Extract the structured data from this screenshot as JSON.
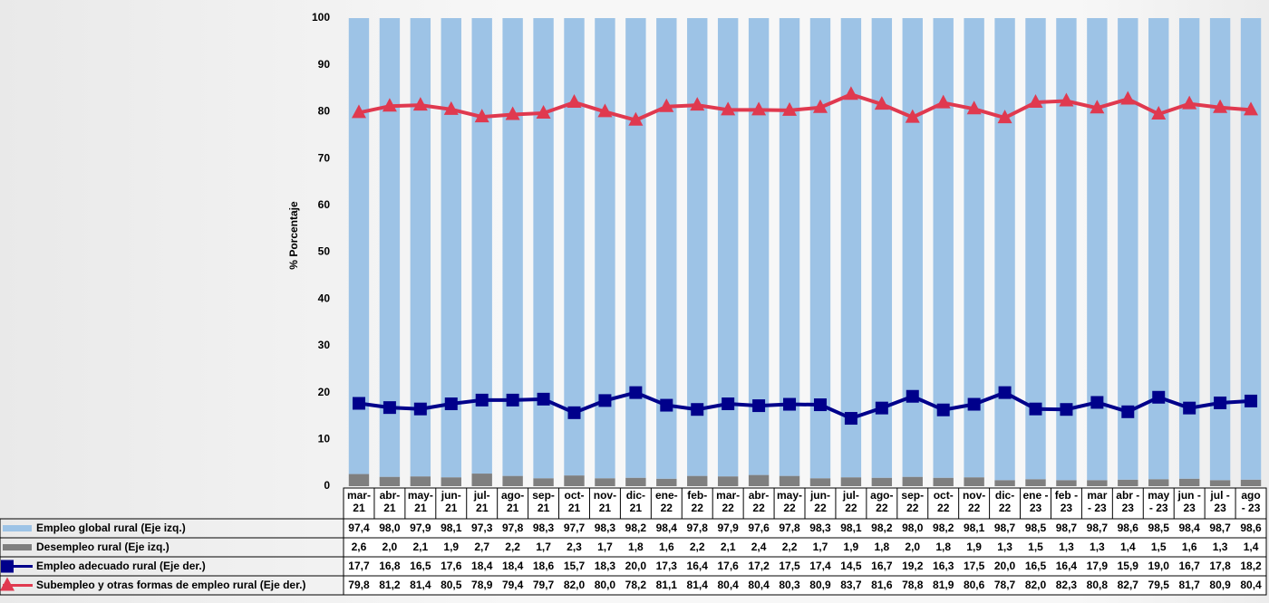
{
  "chart_data": {
    "type": "bar_line",
    "y_label": "% Porcentaje",
    "categories": [
      "mar-\n21",
      "abr-\n21",
      "may-\n21",
      "jun-\n21",
      "jul-\n21",
      "ago-\n21",
      "sep-\n21",
      "oct-\n21",
      "nov-\n21",
      "dic-\n21",
      "ene-\n22",
      "feb-\n22",
      "mar-\n22",
      "abr-\n22",
      "may-\n22",
      "jun-\n22",
      "jul-\n22",
      "ago-\n22",
      "sep-\n22",
      "oct-\n22",
      "nov-\n22",
      "dic-\n22",
      "ene -\n23",
      "feb -\n23",
      "mar\n- 23",
      "abr -\n23",
      "may\n- 23",
      "jun -\n23",
      "jul -\n23",
      "ago\n- 23"
    ],
    "ylim": [
      0,
      100
    ],
    "yticks": [
      0,
      10,
      20,
      30,
      40,
      50,
      60,
      70,
      80,
      90,
      100
    ],
    "series": [
      {
        "name": "Empleo global rural  (Eje izq.)",
        "kind": "bar",
        "color": "#9dc3e6",
        "values": [
          97.4,
          98.0,
          97.9,
          98.1,
          97.3,
          97.8,
          98.3,
          97.7,
          98.3,
          98.2,
          98.4,
          97.8,
          97.9,
          97.6,
          97.8,
          98.3,
          98.1,
          98.2,
          98.0,
          98.2,
          98.1,
          98.7,
          98.5,
          98.7,
          98.7,
          98.6,
          98.5,
          98.4,
          98.7,
          98.6
        ],
        "value_labels": [
          "97,4",
          "98,0",
          "97,9",
          "98,1",
          "97,3",
          "97,8",
          "98,3",
          "97,7",
          "98,3",
          "98,2",
          "98,4",
          "97,8",
          "97,9",
          "97,6",
          "97,8",
          "98,3",
          "98,1",
          "98,2",
          "98,0",
          "98,2",
          "98,1",
          "98,7",
          "98,5",
          "98,7",
          "98,7",
          "98,6",
          "98,5",
          "98,4",
          "98,7",
          "98,6"
        ]
      },
      {
        "name": "Desempleo rural (Eje izq.)",
        "kind": "bar",
        "color": "#7f7f7f",
        "values": [
          2.6,
          2.0,
          2.1,
          1.9,
          2.7,
          2.2,
          1.7,
          2.3,
          1.7,
          1.8,
          1.6,
          2.2,
          2.1,
          2.4,
          2.2,
          1.7,
          1.9,
          1.8,
          2.0,
          1.8,
          1.9,
          1.3,
          1.5,
          1.3,
          1.3,
          1.4,
          1.5,
          1.6,
          1.3,
          1.4
        ],
        "value_labels": [
          "2,6",
          "2,0",
          "2,1",
          "1,9",
          "2,7",
          "2,2",
          "1,7",
          "2,3",
          "1,7",
          "1,8",
          "1,6",
          "2,2",
          "2,1",
          "2,4",
          "2,2",
          "1,7",
          "1,9",
          "1,8",
          "2,0",
          "1,8",
          "1,9",
          "1,3",
          "1,5",
          "1,3",
          "1,3",
          "1,4",
          "1,5",
          "1,6",
          "1,3",
          "1,4"
        ]
      },
      {
        "name": "Empleo adecuado rural (Eje der.)",
        "kind": "line",
        "marker": "square",
        "color": "#00008b",
        "values": [
          17.7,
          16.8,
          16.5,
          17.6,
          18.4,
          18.4,
          18.6,
          15.7,
          18.3,
          20.0,
          17.3,
          16.4,
          17.6,
          17.2,
          17.5,
          17.4,
          14.5,
          16.7,
          19.2,
          16.3,
          17.5,
          20.0,
          16.5,
          16.4,
          17.9,
          15.9,
          19.0,
          16.7,
          17.8,
          18.2
        ],
        "value_labels": [
          "17,7",
          "16,8",
          "16,5",
          "17,6",
          "18,4",
          "18,4",
          "18,6",
          "15,7",
          "18,3",
          "20,0",
          "17,3",
          "16,4",
          "17,6",
          "17,2",
          "17,5",
          "17,4",
          "14,5",
          "16,7",
          "19,2",
          "16,3",
          "17,5",
          "20,0",
          "16,5",
          "16,4",
          "17,9",
          "15,9",
          "19,0",
          "16,7",
          "17,8",
          "18,2"
        ]
      },
      {
        "name": "Subempleo y otras formas de empleo rural (Eje der.)",
        "kind": "line",
        "marker": "triangle",
        "color": "#e0394f",
        "values": [
          79.8,
          81.2,
          81.4,
          80.5,
          78.9,
          79.4,
          79.7,
          82.0,
          80.0,
          78.2,
          81.1,
          81.4,
          80.4,
          80.4,
          80.3,
          80.9,
          83.7,
          81.6,
          78.8,
          81.9,
          80.6,
          78.7,
          82.0,
          82.3,
          80.8,
          82.7,
          79.5,
          81.7,
          80.9,
          80.4
        ],
        "value_labels": [
          "79,8",
          "81,2",
          "81,4",
          "80,5",
          "78,9",
          "79,4",
          "79,7",
          "82,0",
          "80,0",
          "78,2",
          "81,1",
          "81,4",
          "80,4",
          "80,4",
          "80,3",
          "80,9",
          "83,7",
          "81,6",
          "78,8",
          "81,9",
          "80,6",
          "78,7",
          "82,0",
          "82,3",
          "80,8",
          "82,7",
          "79,5",
          "81,7",
          "80,9",
          "80,4"
        ]
      }
    ]
  }
}
